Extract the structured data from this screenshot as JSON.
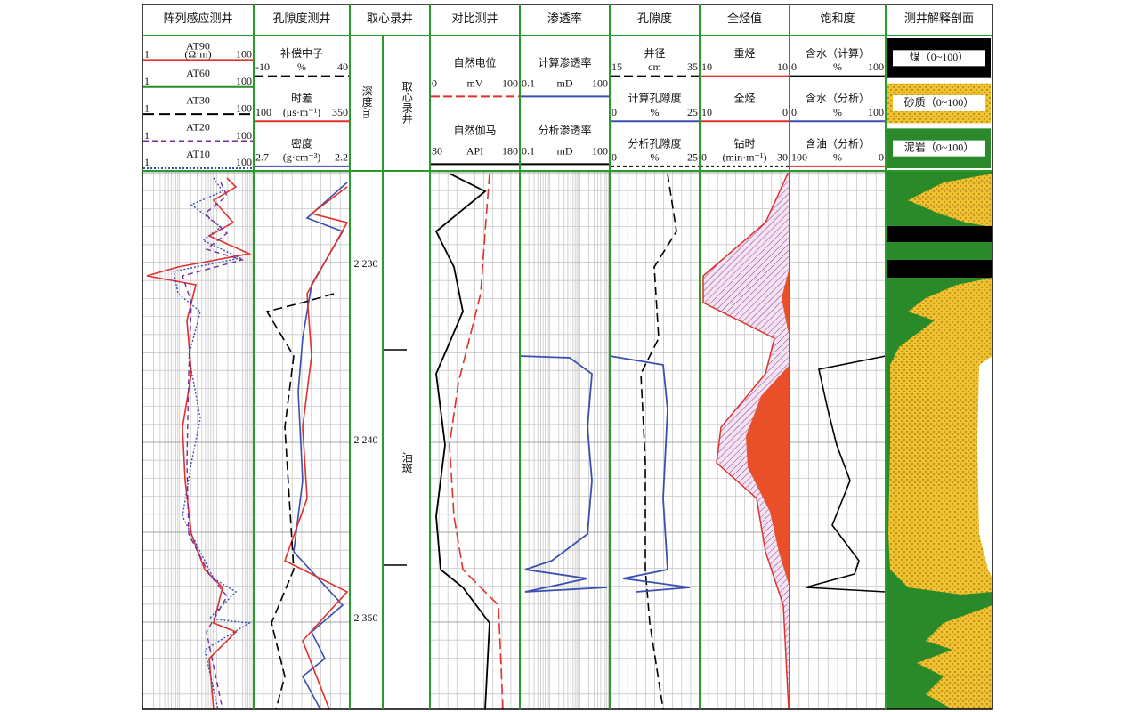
{
  "tracks": [
    {
      "title": "阵列感应测井",
      "curves": [
        {
          "name": "AT90",
          "unit": "(Ω·m)",
          "left": "1",
          "right": "100",
          "color": "#e0312c",
          "dash": "none"
        },
        {
          "name": "AT60",
          "left": "1",
          "right": "100",
          "color": "#2a8a2a",
          "dash": "none"
        },
        {
          "name": "AT30",
          "left": "1",
          "right": "100",
          "color": "#000000",
          "dash": "12 6"
        },
        {
          "name": "AT20",
          "left": "1",
          "right": "100",
          "color": "#7a2a9a",
          "dash": "6 4"
        },
        {
          "name": "AT10",
          "left": "1",
          "right": "100",
          "color": "#3a4fb0",
          "dash": "2 2"
        }
      ]
    },
    {
      "title": "孔隙度测井",
      "curves": [
        {
          "name": "补偿中子",
          "left": "-10",
          "unit": "%",
          "right": "40",
          "color": "#000000",
          "dash": "10 5"
        },
        {
          "name": "时差",
          "left": "100",
          "unit": "(μs·m⁻¹)",
          "right": "350",
          "color": "#e0312c",
          "dash": "none"
        },
        {
          "name": "密度",
          "left": "2.7",
          "unit": "(g·cm⁻³)",
          "right": "2.2",
          "color": "#3a4fb0",
          "dash": "none"
        }
      ]
    },
    {
      "title": "取心录井"
    },
    {
      "title": "对比测井",
      "curves": [
        {
          "name": "自然电位",
          "left": "0",
          "unit": "mV",
          "right": "100",
          "color": "#e0312c",
          "dash": "10 4"
        },
        {
          "name": "自然伽马",
          "left": "30",
          "unit": "API",
          "right": "180",
          "color": "#000000",
          "dash": "none"
        }
      ]
    },
    {
      "title": "渗透率",
      "curves": [
        {
          "name": "计算渗透率",
          "left": "0.1",
          "unit": "mD",
          "right": "100",
          "color": "#3a4fb0",
          "dash": "none"
        },
        {
          "name": "分析渗透率",
          "left": "0.1",
          "unit": "mD",
          "right": "100",
          "color": "#000000",
          "dash": "none"
        }
      ]
    },
    {
      "title": "孔隙度",
      "curves": [
        {
          "name": "井径",
          "left": "15",
          "unit": "cm",
          "right": "35",
          "color": "#000000",
          "dash": "10 5"
        },
        {
          "name": "计算孔隙度",
          "left": "0",
          "unit": "%",
          "right": "25",
          "color": "#3a4fb0",
          "dash": "none"
        },
        {
          "name": "分析孔隙度",
          "left": "0",
          "unit": "%",
          "right": "25",
          "color": "#000000",
          "dash": "4 3"
        }
      ]
    },
    {
      "title": "全烃值",
      "curves": [
        {
          "name": "重烃",
          "left": "10",
          "right": "10",
          "color": "#e0312c",
          "dash": "none"
        },
        {
          "name": "全烃",
          "left": "10",
          "right": "0",
          "color": "#e0312c",
          "dash": "none"
        },
        {
          "name": "钻时",
          "left": "0",
          "unit": "(min·m⁻¹)",
          "right": "30",
          "color": "#000000",
          "dash": "3 3"
        }
      ]
    },
    {
      "title": "饱和度",
      "curves": [
        {
          "name": "含水（计算）",
          "left": "0",
          "unit": "%",
          "right": "100",
          "color": "#000000",
          "dash": "none"
        },
        {
          "name": "含水（分析）",
          "left": "0",
          "unit": "%",
          "right": "100",
          "color": "#3a4fb0",
          "dash": "none"
        },
        {
          "name": "含油（分析）",
          "left": "100",
          "unit": "%",
          "right": "0",
          "color": "#e0312c",
          "dash": "none"
        }
      ]
    },
    {
      "title": "测井解释剖面",
      "curves": [
        {
          "name": "煤（0~100）",
          "color": "#000000"
        },
        {
          "name": "砂质（0~100）",
          "color": "#f2c12e"
        },
        {
          "name": "泥岩（0~100）",
          "color": "#2a8a2a"
        }
      ]
    }
  ],
  "depth": {
    "title": "深度/m",
    "labels": [
      "2 230",
      "2 240",
      "2 350"
    ]
  },
  "core": {
    "title": "取心录井",
    "label": "油斑"
  }
}
